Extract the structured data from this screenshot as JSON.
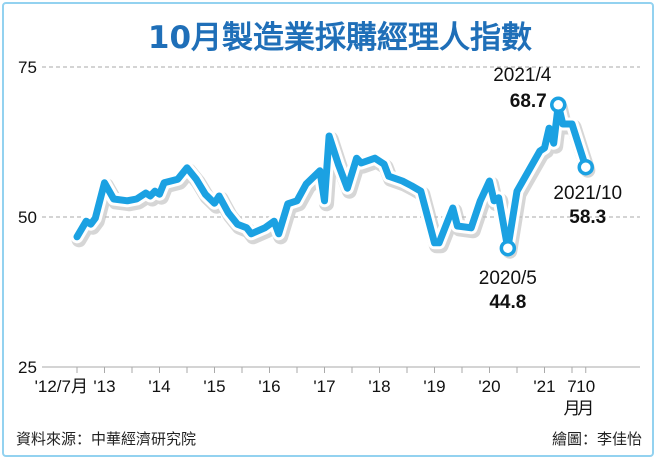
{
  "title": "10月製造業採購經理人指數",
  "source": "資料來源：中華經濟研究院",
  "credit": "繪圖：李佳怡",
  "colors": {
    "line": "#1ba1e2",
    "title": "#1f6fb8",
    "frame": "#93d2f0",
    "grid": "#aaaaaa"
  },
  "chart_data": {
    "type": "line",
    "title": "10月製造業採購經理人指數",
    "ylim": [
      25,
      75
    ],
    "yticks": [
      75,
      50,
      25
    ],
    "grid": "dashed horizontal at 75 and 50",
    "xtick_labels": [
      {
        "date": "2012/7",
        "label": "'12/7月"
      },
      {
        "date": "2013/1",
        "label": "'13"
      },
      {
        "date": "2014/1",
        "label": "'14"
      },
      {
        "date": "2015/1",
        "label": "'15"
      },
      {
        "date": "2016/1",
        "label": "'16"
      },
      {
        "date": "2017/1",
        "label": "'17"
      },
      {
        "date": "2018/1",
        "label": "'18"
      },
      {
        "date": "2019/1",
        "label": "'19"
      },
      {
        "date": "2020/1",
        "label": "'20"
      },
      {
        "date": "2021/1",
        "label": "'21"
      },
      {
        "date": "2021/7",
        "label": "7",
        "sub": "月"
      },
      {
        "date": "2021/10",
        "label": "10",
        "sub": "月"
      }
    ],
    "points": [
      [
        "2012/7",
        46.7
      ],
      [
        "2012/9",
        49.3
      ],
      [
        "2012/10",
        48.8
      ],
      [
        "2012/11",
        49.8
      ],
      [
        "2013/1",
        55.7
      ],
      [
        "2013/3",
        53.0
      ],
      [
        "2013/6",
        52.7
      ],
      [
        "2013/8",
        53.0
      ],
      [
        "2013/10",
        54.0
      ],
      [
        "2013/11",
        53.5
      ],
      [
        "2013/12",
        54.3
      ],
      [
        "2014/1",
        53.8
      ],
      [
        "2014/2",
        55.7
      ],
      [
        "2014/5",
        56.3
      ],
      [
        "2014/7",
        58.2
      ],
      [
        "2014/9",
        56.3
      ],
      [
        "2014/11",
        53.8
      ],
      [
        "2015/1",
        52.3
      ],
      [
        "2015/2",
        53.5
      ],
      [
        "2015/4",
        50.7
      ],
      [
        "2015/6",
        48.8
      ],
      [
        "2015/8",
        48.2
      ],
      [
        "2015/9",
        47.2
      ],
      [
        "2015/12",
        48.2
      ],
      [
        "2016/2",
        49.3
      ],
      [
        "2016/3",
        47.2
      ],
      [
        "2016/5",
        52.2
      ],
      [
        "2016/7",
        52.7
      ],
      [
        "2016/9",
        55.5
      ],
      [
        "2016/12",
        57.7
      ],
      [
        "2017/1",
        52.7
      ],
      [
        "2017/2",
        63.5
      ],
      [
        "2017/4",
        58.8
      ],
      [
        "2017/6",
        54.8
      ],
      [
        "2017/8",
        59.8
      ],
      [
        "2017/9",
        59.0
      ],
      [
        "2017/12",
        59.8
      ],
      [
        "2018/2",
        58.8
      ],
      [
        "2018/3",
        56.8
      ],
      [
        "2018/6",
        56.0
      ],
      [
        "2018/8",
        55.2
      ],
      [
        "2018/10",
        54.3
      ],
      [
        "2019/1",
        45.7
      ],
      [
        "2019/2",
        45.7
      ],
      [
        "2019/5",
        51.5
      ],
      [
        "2019/6",
        48.5
      ],
      [
        "2019/9",
        48.2
      ],
      [
        "2019/11",
        52.7
      ],
      [
        "2020/1",
        56.0
      ],
      [
        "2020/2",
        52.7
      ],
      [
        "2020/3",
        53.2
      ],
      [
        "2020/5",
        44.8
      ],
      [
        "2020/7",
        54.3
      ],
      [
        "2020/12",
        61.0
      ],
      [
        "2021/1",
        61.5
      ],
      [
        "2021/2",
        64.8
      ],
      [
        "2021/3",
        62.3
      ],
      [
        "2021/4",
        68.7
      ],
      [
        "2021/5",
        65.5
      ],
      [
        "2021/7",
        65.5
      ],
      [
        "2021/10",
        58.3
      ]
    ],
    "annotations": [
      {
        "date": "2021/4",
        "label": "2021/4",
        "value": "68.7"
      },
      {
        "date": "2021/10",
        "label": "2021/10",
        "value": "58.3"
      },
      {
        "date": "2020/5",
        "label": "2020/5",
        "value": "44.8"
      }
    ]
  }
}
